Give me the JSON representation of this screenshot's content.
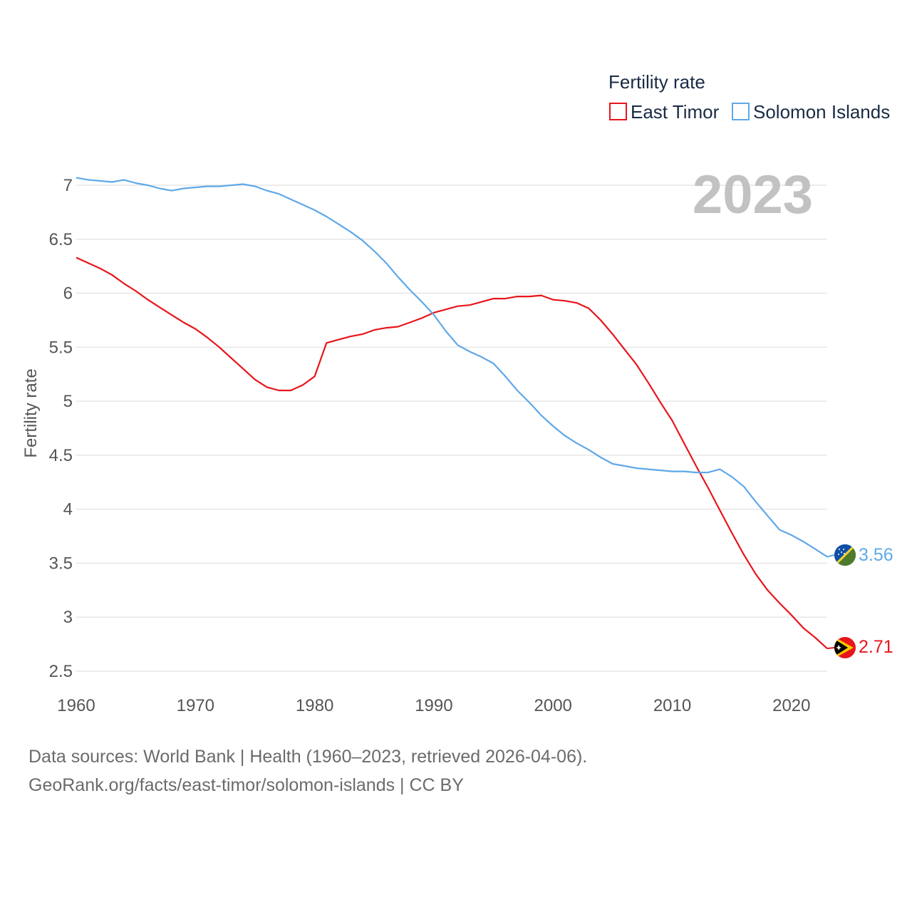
{
  "chart_data": {
    "type": "line",
    "title": "Fertility rate",
    "year_label": "2023",
    "xlabel": "",
    "ylabel": "Fertility rate",
    "xlim": [
      1960,
      2023
    ],
    "ylim": [
      2.5,
      7
    ],
    "x_ticks": [
      1960,
      1970,
      1980,
      1990,
      2000,
      2010,
      2020
    ],
    "y_ticks": [
      2.5,
      3,
      3.5,
      4,
      4.5,
      5,
      5.5,
      6,
      6.5,
      7
    ],
    "y_tick_labels": [
      "2.5",
      "3",
      "3.5",
      "4",
      "4.5",
      "5",
      "5.5",
      "6",
      "6.5",
      "7"
    ],
    "grid": true,
    "legend_position": "top-right",
    "x": [
      1960,
      1961,
      1962,
      1963,
      1964,
      1965,
      1966,
      1967,
      1968,
      1969,
      1970,
      1971,
      1972,
      1973,
      1974,
      1975,
      1976,
      1977,
      1978,
      1979,
      1980,
      1981,
      1982,
      1983,
      1984,
      1985,
      1986,
      1987,
      1988,
      1989,
      1990,
      1991,
      1992,
      1993,
      1994,
      1995,
      1996,
      1997,
      1998,
      1999,
      2000,
      2001,
      2002,
      2003,
      2004,
      2005,
      2006,
      2007,
      2008,
      2009,
      2010,
      2011,
      2012,
      2013,
      2014,
      2015,
      2016,
      2017,
      2018,
      2019,
      2020,
      2021,
      2022,
      2023
    ],
    "series": [
      {
        "name": "East Timor",
        "color": "#e8151b",
        "end_label": "2.71",
        "flag": "east-timor-flag",
        "values": [
          6.33,
          6.28,
          6.23,
          6.17,
          6.09,
          6.02,
          5.94,
          5.87,
          5.8,
          5.73,
          5.67,
          5.59,
          5.5,
          5.4,
          5.3,
          5.2,
          5.13,
          5.1,
          5.1,
          5.15,
          5.23,
          5.54,
          5.57,
          5.6,
          5.62,
          5.66,
          5.68,
          5.69,
          5.73,
          5.77,
          5.82,
          5.85,
          5.88,
          5.89,
          5.92,
          5.95,
          5.95,
          5.97,
          5.97,
          5.98,
          5.94,
          5.93,
          5.91,
          5.86,
          5.75,
          5.62,
          5.48,
          5.34,
          5.17,
          4.99,
          4.82,
          4.61,
          4.4,
          4.2,
          3.99,
          3.78,
          3.58,
          3.4,
          3.25,
          3.13,
          3.02,
          2.9,
          2.81,
          2.71
        ]
      },
      {
        "name": "Solomon Islands",
        "color": "#5fa8e8",
        "end_label": "3.56",
        "flag": "solomon-islands-flag",
        "values": [
          7.07,
          7.05,
          7.04,
          7.03,
          7.05,
          7.02,
          7.0,
          6.97,
          6.95,
          6.97,
          6.98,
          6.99,
          6.99,
          7.0,
          7.01,
          6.99,
          6.95,
          6.92,
          6.87,
          6.82,
          6.77,
          6.71,
          6.64,
          6.57,
          6.49,
          6.39,
          6.28,
          6.15,
          6.03,
          5.92,
          5.8,
          5.65,
          5.52,
          5.46,
          5.41,
          5.35,
          5.23,
          5.1,
          4.99,
          4.87,
          4.77,
          4.68,
          4.61,
          4.55,
          4.48,
          4.42,
          4.4,
          4.38,
          4.37,
          4.36,
          4.35,
          4.35,
          4.34,
          4.34,
          4.37,
          4.3,
          4.21,
          4.07,
          3.94,
          3.81,
          3.76,
          3.7,
          3.63,
          3.56
        ]
      }
    ]
  },
  "footer": {
    "line1": "Data sources: World Bank | Health (1960–2023, retrieved 2026-04-06).",
    "line2": "GeoRank.org/facts/east-timor/solomon-islands | CC BY"
  }
}
